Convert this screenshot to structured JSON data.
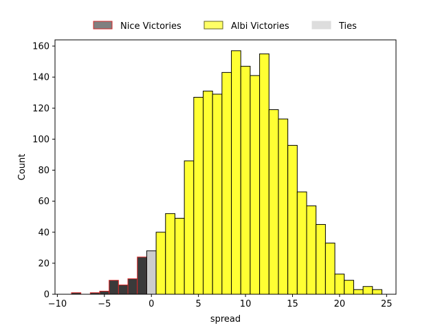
{
  "chart_data": {
    "type": "bar",
    "xlabel": "spread",
    "ylabel": "Count",
    "xlim": [
      -10.25,
      26.0
    ],
    "ylim": [
      0,
      164
    ],
    "x_ticks": [
      -10,
      -5,
      0,
      5,
      10,
      15,
      20,
      25
    ],
    "y_ticks": [
      0,
      20,
      40,
      60,
      80,
      100,
      120,
      140,
      160
    ],
    "bin_width": 1,
    "legend_position": "top-center, above plot",
    "legend": [
      {
        "name": "Nice Victories",
        "fill": "#808080",
        "edge": "#d62728"
      },
      {
        "name": "Albi Victories",
        "fill": "#ffff66",
        "edge": "#606020"
      },
      {
        "name": "Ties",
        "fill": "#dddddd",
        "edge": "#dddddd"
      }
    ],
    "series": [
      {
        "name": "Nice Victories",
        "fill": "#3a3a3a",
        "edge": "#d62728",
        "bins": [
          {
            "x": -8,
            "count": 1
          },
          {
            "x": -6,
            "count": 1
          },
          {
            "x": -5,
            "count": 2
          },
          {
            "x": -4,
            "count": 9
          },
          {
            "x": -3,
            "count": 6
          },
          {
            "x": -2,
            "count": 10
          },
          {
            "x": -1,
            "count": 24
          }
        ]
      },
      {
        "name": "Ties",
        "fill": "#cccccc",
        "edge": "#000000",
        "bins": [
          {
            "x": 0,
            "count": 28
          }
        ]
      },
      {
        "name": "Albi Victories",
        "fill": "#ffff33",
        "edge": "#000000",
        "bins": [
          {
            "x": 1,
            "count": 40
          },
          {
            "x": 2,
            "count": 52
          },
          {
            "x": 3,
            "count": 49
          },
          {
            "x": 4,
            "count": 86
          },
          {
            "x": 5,
            "count": 127
          },
          {
            "x": 6,
            "count": 131
          },
          {
            "x": 7,
            "count": 129
          },
          {
            "x": 8,
            "count": 143
          },
          {
            "x": 9,
            "count": 157
          },
          {
            "x": 10,
            "count": 147
          },
          {
            "x": 11,
            "count": 141
          },
          {
            "x": 12,
            "count": 155
          },
          {
            "x": 13,
            "count": 119
          },
          {
            "x": 14,
            "count": 113
          },
          {
            "x": 15,
            "count": 96
          },
          {
            "x": 16,
            "count": 66
          },
          {
            "x": 17,
            "count": 57
          },
          {
            "x": 18,
            "count": 45
          },
          {
            "x": 19,
            "count": 33
          },
          {
            "x": 20,
            "count": 13
          },
          {
            "x": 21,
            "count": 9
          },
          {
            "x": 22,
            "count": 3
          },
          {
            "x": 23,
            "count": 5
          },
          {
            "x": 24,
            "count": 3
          }
        ]
      }
    ]
  }
}
